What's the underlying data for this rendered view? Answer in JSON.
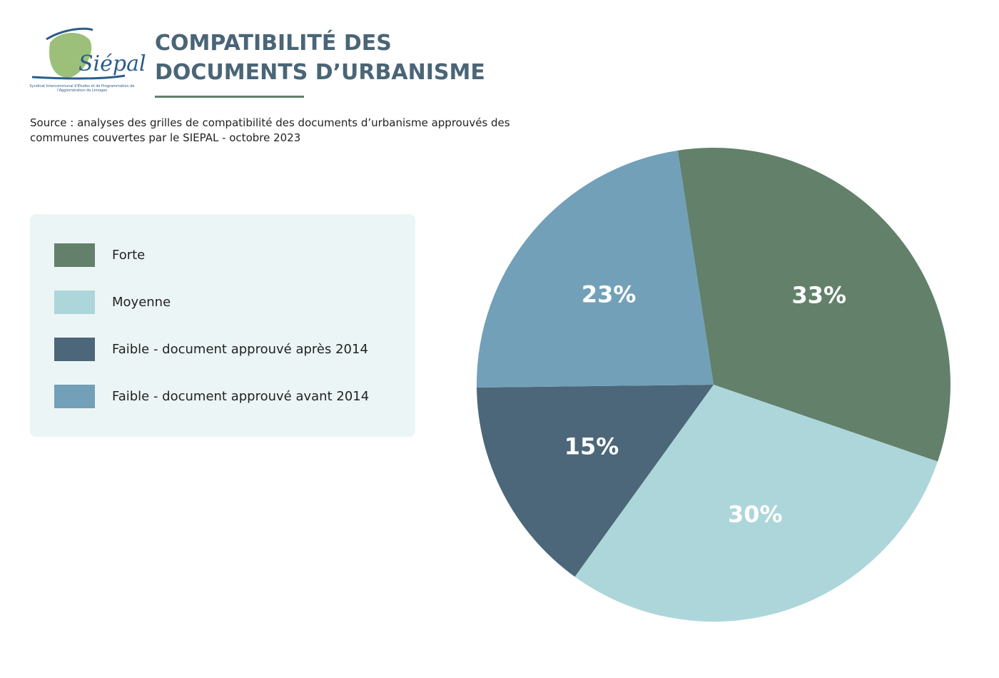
{
  "logo": {
    "name": "Siépal",
    "caption": "Syndicat Intercommunal d'Etudes et de Programmation de l'Agglomération de Limoges"
  },
  "chart_data": {
    "type": "pie",
    "title": "COMPATIBILITÉ DES DOCUMENTS D’URBANISME",
    "subtitle": "Source : analyses des grilles de compatibilité des documents d’urbanisme approuvés des communes couvertes par le SIEPAL - octobre 2023",
    "categories": [
      "Forte",
      "Moyenne",
      "Faible - document approuvé après 2014",
      "Faible - document approuvé avant 2014"
    ],
    "values": [
      33,
      30,
      15,
      23
    ],
    "value_labels": [
      "33%",
      "30%",
      "15%",
      "23%"
    ],
    "colors": [
      "#62806a",
      "#add6da",
      "#4b6779",
      "#72a0b8"
    ]
  }
}
